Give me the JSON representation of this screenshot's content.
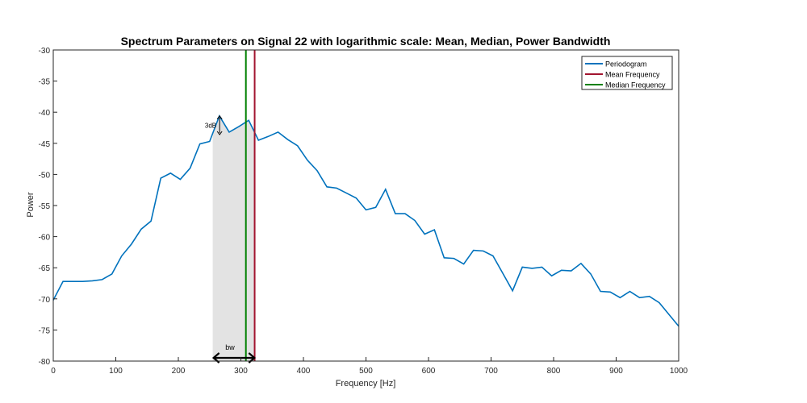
{
  "chart_data": {
    "type": "line",
    "title": "Spectrum Parameters on Signal 22 with logarithmic scale: Mean, Median, Power Bandwidth",
    "xlabel": "Frequency [Hz]",
    "ylabel": "Power",
    "xlim": [
      0,
      1000
    ],
    "ylim": [
      -80,
      -30
    ],
    "xticks": [
      0,
      100,
      200,
      300,
      400,
      500,
      600,
      700,
      800,
      900,
      1000
    ],
    "yticks": [
      -30,
      -35,
      -40,
      -45,
      -50,
      -55,
      -60,
      -65,
      -70,
      -75,
      -80
    ],
    "grid": false,
    "legend_position": "top-right",
    "series": [
      {
        "name": "Periodogram",
        "color": "#0072BD",
        "x": [
          0,
          15.6,
          31.3,
          46.9,
          62.5,
          78.1,
          93.8,
          109.4,
          125,
          140.6,
          156.3,
          171.9,
          187.5,
          203.1,
          218.8,
          234.4,
          250,
          265.6,
          281.3,
          296.9,
          312.5,
          328.1,
          343.8,
          359.4,
          375,
          390.6,
          406.3,
          421.9,
          437.5,
          453.1,
          468.8,
          484.4,
          500,
          515.6,
          531.3,
          546.9,
          562.5,
          578.1,
          593.8,
          609.4,
          625,
          640.6,
          656.3,
          671.9,
          687.5,
          703.1,
          718.8,
          734.4,
          750,
          765.6,
          781.3,
          796.9,
          812.5,
          828.1,
          843.8,
          859.4,
          875,
          890.6,
          906.3,
          921.9,
          937.5,
          953.1,
          968.8,
          984.4,
          1000
        ],
        "y": [
          -70.2,
          -67.2,
          -67.2,
          -67.2,
          -67.1,
          -66.9,
          -66.0,
          -63.1,
          -61.2,
          -58.8,
          -57.5,
          -50.6,
          -49.8,
          -50.8,
          -49.0,
          -45.1,
          -44.7,
          -40.6,
          -43.2,
          -42.3,
          -41.3,
          -44.5,
          -43.9,
          -43.2,
          -44.4,
          -45.4,
          -47.7,
          -49.4,
          -52.0,
          -52.2,
          -53.0,
          -53.8,
          -55.7,
          -55.3,
          -52.4,
          -56.3,
          -56.3,
          -57.4,
          -59.6,
          -58.9,
          -63.4,
          -63.5,
          -64.4,
          -62.2,
          -62.3,
          -63.1,
          -65.9,
          -68.7,
          -64.9,
          -65.1,
          -64.9,
          -66.3,
          -65.4,
          -65.5,
          -64.3,
          -66.0,
          -68.8,
          -68.9,
          -69.8,
          -68.8,
          -69.8,
          -69.6,
          -70.6,
          -72.5,
          -74.4
        ]
      },
      {
        "name": "Mean Frequency",
        "color": "#A2142F",
        "x": 322
      },
      {
        "name": "Median Frequency",
        "color": "#008000",
        "x": 308
      }
    ],
    "bandwidth": {
      "x_start": 255,
      "x_end": 323,
      "color": "#e3e3e3"
    },
    "annotations": {
      "db_label": "3dB",
      "db_arrow_x": 266,
      "db_arrow_y": [
        -40.6,
        -43.6
      ],
      "bw_label": "bw"
    }
  }
}
